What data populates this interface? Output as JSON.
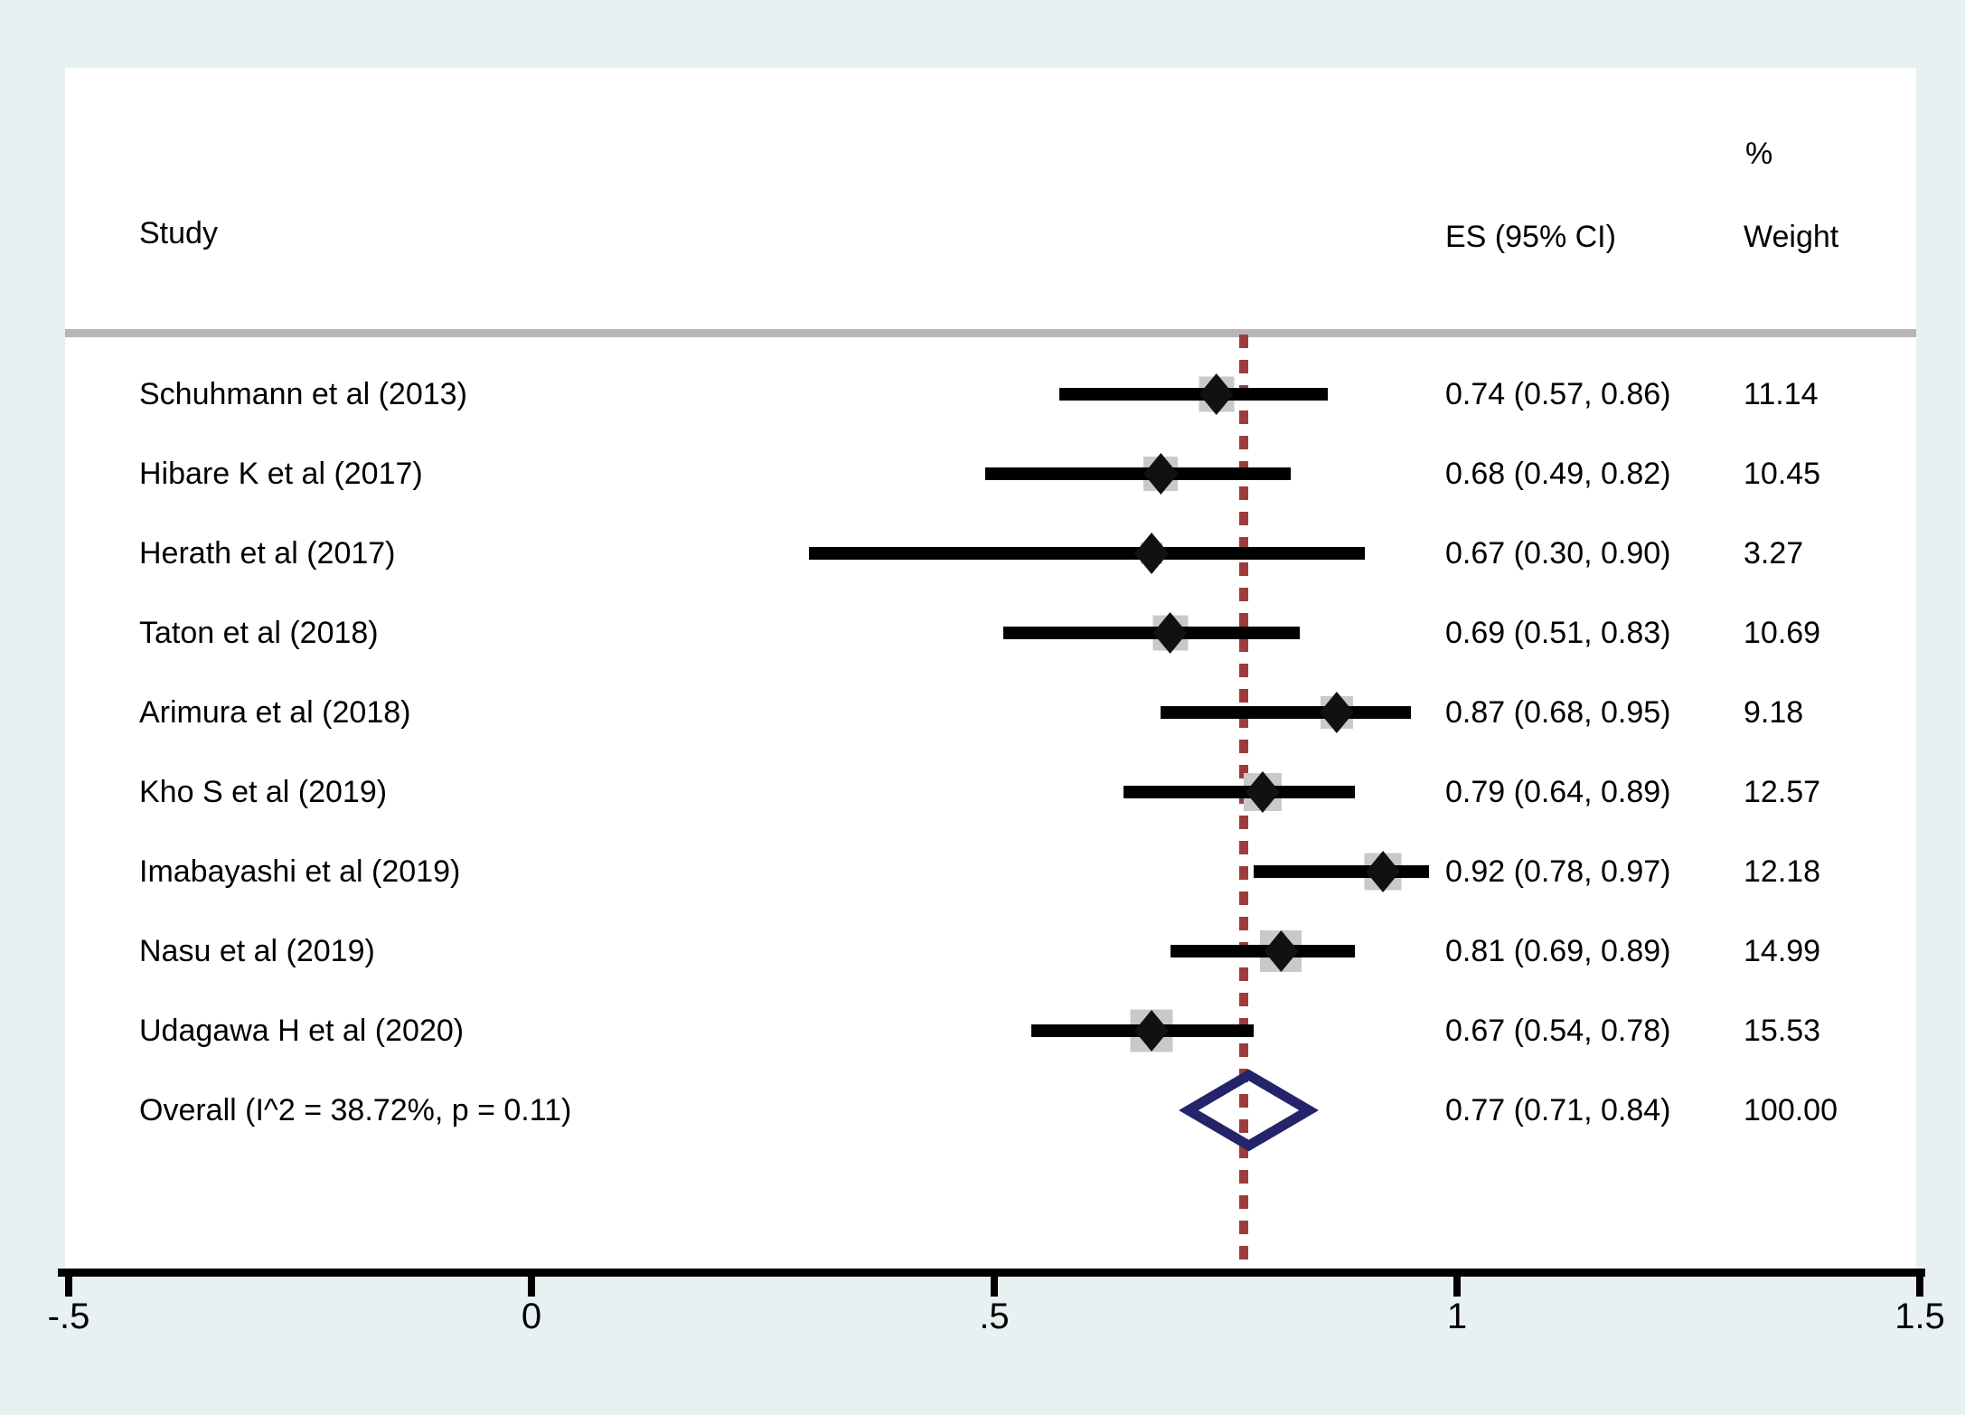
{
  "chart_data": {
    "type": "forest",
    "columns": {
      "study": "Study",
      "es": "ES (95% CI)",
      "weight_line1": "%",
      "weight_line2": "Weight"
    },
    "axis": {
      "range": [
        -0.5,
        1.5
      ],
      "ticks": [
        {
          "value": -0.5,
          "label": "-.5"
        },
        {
          "value": 0,
          "label": "0"
        },
        {
          "value": 0.5,
          "label": ".5"
        },
        {
          "value": 1,
          "label": "1"
        },
        {
          "value": 1.5,
          "label": "1.5"
        }
      ]
    },
    "null_line_value": 0.77,
    "studies": [
      {
        "label": "Schuhmann et al (2013)",
        "es": 0.74,
        "lo": 0.57,
        "hi": 0.86,
        "es_text": "0.74 (0.57, 0.86)",
        "weight": 11.14,
        "weight_text": "11.14"
      },
      {
        "label": "Hibare K et al (2017)",
        "es": 0.68,
        "lo": 0.49,
        "hi": 0.82,
        "es_text": "0.68 (0.49, 0.82)",
        "weight": 10.45,
        "weight_text": "10.45"
      },
      {
        "label": "Herath et al (2017)",
        "es": 0.67,
        "lo": 0.3,
        "hi": 0.9,
        "es_text": "0.67 (0.30, 0.90)",
        "weight": 3.27,
        "weight_text": "3.27"
      },
      {
        "label": "Taton et al (2018)",
        "es": 0.69,
        "lo": 0.51,
        "hi": 0.83,
        "es_text": "0.69 (0.51, 0.83)",
        "weight": 10.69,
        "weight_text": "10.69"
      },
      {
        "label": "Arimura et al (2018)",
        "es": 0.87,
        "lo": 0.68,
        "hi": 0.95,
        "es_text": "0.87 (0.68, 0.95)",
        "weight": 9.18,
        "weight_text": "9.18"
      },
      {
        "label": "Kho S et al (2019)",
        "es": 0.79,
        "lo": 0.64,
        "hi": 0.89,
        "es_text": "0.79 (0.64, 0.89)",
        "weight": 12.57,
        "weight_text": "12.57"
      },
      {
        "label": "Imabayashi et al (2019)",
        "es": 0.92,
        "lo": 0.78,
        "hi": 0.97,
        "es_text": "0.92 (0.78, 0.97)",
        "weight": 12.18,
        "weight_text": "12.18"
      },
      {
        "label": "Nasu et al (2019)",
        "es": 0.81,
        "lo": 0.69,
        "hi": 0.89,
        "es_text": "0.81 (0.69, 0.89)",
        "weight": 14.99,
        "weight_text": "14.99"
      },
      {
        "label": "Udagawa H et al (2020)",
        "es": 0.67,
        "lo": 0.54,
        "hi": 0.78,
        "es_text": "0.67 (0.54, 0.78)",
        "weight": 15.53,
        "weight_text": "15.53"
      }
    ],
    "overall": {
      "label": "Overall  (I^2 = 38.72%, p = 0.11)",
      "es": 0.77,
      "lo": 0.71,
      "hi": 0.84,
      "es_text": "0.77 (0.71, 0.84)",
      "weight_text": "100.00"
    },
    "colors": {
      "background": "#e8f1f2",
      "plot_background": "#ffffff",
      "ci_line": "#000000",
      "point_marker": "#111111",
      "weight_square": "#c9c9c9",
      "overall_diamond": "#23246a",
      "null_line": "#a03b3b",
      "separator": "#b6b6b6",
      "axis": "#000000",
      "text": "#000000"
    }
  }
}
